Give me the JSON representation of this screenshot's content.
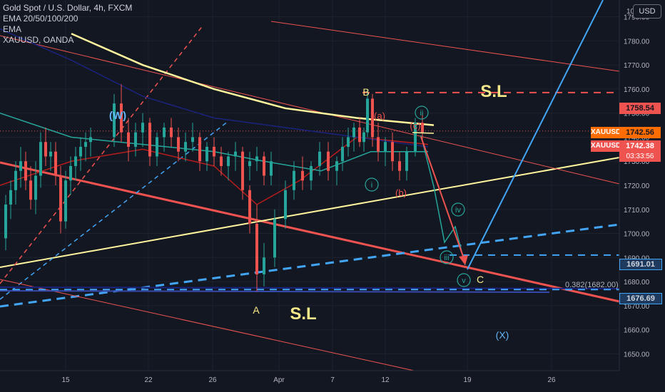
{
  "chart_title": "Gold Spot / U.S. Dollar, 4h, FXCM",
  "indicator_1": "EMA 20/50/100/200",
  "indicator_2": "EMA",
  "indicator_3": "XAUUSD, OANDA",
  "currency": "USD",
  "colors": {
    "background": "#131722",
    "bull": "#26a69a",
    "bear": "#ef5350",
    "ema20": "#b71c1c",
    "ema50": "#26a69a",
    "ema100": "#1a237e",
    "ema200": "#fff59d",
    "label_yellow": "#f7e88a",
    "wave_green": "#26a69a",
    "wave_red": "#ef5350",
    "blue_line": "#42a5f5"
  },
  "chart_data": {
    "type": "candlestick",
    "symbol": "XAUUSD",
    "timeframe": "4h",
    "ylim": [
      1643,
      1797
    ],
    "y_ticks": [
      1650,
      1660,
      1670,
      1680,
      1690,
      1700,
      1710,
      1720,
      1730,
      1740,
      1750,
      1760,
      1770,
      1780,
      1790
    ],
    "y_tick_labels": [
      "1650.00",
      "1660.00",
      "1670.00",
      "1680.00",
      "1690.00",
      "1700.00",
      "1710.00",
      "1720.00",
      "1730.00",
      "1740.00",
      "1750.00",
      "1760.00",
      "1770.00",
      "1780.00",
      "1790.00"
    ],
    "top_partial_tick_label": "10",
    "x_axis_labels": [
      "15",
      "22",
      "26",
      "Apr",
      "7",
      "12",
      "19",
      "26"
    ],
    "price_levels": [
      {
        "value": 1758.54,
        "label": "1758.54",
        "style": "dashed",
        "color": "#ef5350"
      },
      {
        "value": 1691.01,
        "label": "1691.01",
        "style": "dashed",
        "color": "#42a5f5"
      },
      {
        "value": 1676.69,
        "label": "1676.69",
        "style": "dashed",
        "color": "#42a5f5"
      }
    ],
    "current_price": {
      "symbol": "XAUUSD",
      "value": 1742.56,
      "label": "1742.56"
    },
    "secondary_price": {
      "symbol": "XAUUSD",
      "value": 1742.38,
      "label": "1742.38",
      "countdown": "03:33:56"
    },
    "fib_level": {
      "ratio": "0.382",
      "value": 1682.0,
      "label": "0.382(1682.00)"
    },
    "wave_labels": [
      "(W)",
      "B",
      "(a)",
      "ii",
      "(c)",
      "i",
      "(b)",
      "iv",
      "iii",
      "v",
      "C",
      "A",
      "(X)"
    ],
    "annotations": [
      "S.L",
      "S.L"
    ],
    "candles": [
      [
        1698,
        1716,
        1693,
        1712
      ],
      [
        1712,
        1722,
        1706,
        1718
      ],
      [
        1718,
        1730,
        1712,
        1726
      ],
      [
        1726,
        1736,
        1719,
        1730
      ],
      [
        1730,
        1734,
        1718,
        1722
      ],
      [
        1722,
        1728,
        1710,
        1714
      ],
      [
        1714,
        1730,
        1708,
        1724
      ],
      [
        1724,
        1742,
        1719,
        1738
      ],
      [
        1738,
        1744,
        1728,
        1732
      ],
      [
        1732,
        1738,
        1726,
        1734
      ],
      [
        1734,
        1738,
        1720,
        1724
      ],
      [
        1724,
        1728,
        1700,
        1705
      ],
      [
        1705,
        1726,
        1702,
        1722
      ],
      [
        1722,
        1732,
        1716,
        1728
      ],
      [
        1728,
        1736,
        1722,
        1732
      ],
      [
        1732,
        1740,
        1726,
        1736
      ],
      [
        1736,
        1742,
        1730,
        1738
      ],
      [
        1738,
        1744,
        1732,
        1740
      ],
      [
        1740,
        1758,
        1736,
        1754
      ],
      [
        1754,
        1762,
        1738,
        1742
      ],
      [
        1742,
        1748,
        1730,
        1736
      ],
      [
        1736,
        1746,
        1732,
        1742
      ],
      [
        1742,
        1750,
        1736,
        1746
      ],
      [
        1746,
        1748,
        1728,
        1732
      ],
      [
        1732,
        1742,
        1728,
        1740
      ],
      [
        1740,
        1746,
        1734,
        1744
      ],
      [
        1744,
        1748,
        1736,
        1740
      ],
      [
        1740,
        1744,
        1730,
        1734
      ],
      [
        1734,
        1742,
        1730,
        1738
      ],
      [
        1738,
        1746,
        1734,
        1740
      ],
      [
        1740,
        1742,
        1726,
        1730
      ],
      [
        1730,
        1738,
        1726,
        1736
      ],
      [
        1736,
        1740,
        1728,
        1732
      ],
      [
        1732,
        1736,
        1724,
        1728
      ],
      [
        1728,
        1734,
        1722,
        1732
      ],
      [
        1732,
        1738,
        1726,
        1734
      ],
      [
        1734,
        1736,
        1724,
        1728
      ],
      [
        1728,
        1734,
        1722,
        1730
      ],
      [
        1730,
        1736,
        1726,
        1732
      ],
      [
        1732,
        1734,
        1720,
        1724
      ],
      [
        1724,
        1734,
        1720,
        1730
      ],
      [
        1730,
        1736,
        1714,
        1718
      ],
      [
        1718,
        1720,
        1700,
        1704
      ],
      [
        1704,
        1712,
        1676,
        1683
      ],
      [
        1683,
        1696,
        1678,
        1690
      ],
      [
        1690,
        1710,
        1686,
        1706
      ],
      [
        1706,
        1722,
        1702,
        1718
      ],
      [
        1718,
        1730,
        1714,
        1726
      ],
      [
        1726,
        1732,
        1718,
        1722
      ],
      [
        1722,
        1730,
        1718,
        1728
      ],
      [
        1728,
        1738,
        1724,
        1734
      ],
      [
        1734,
        1738,
        1722,
        1726
      ],
      [
        1726,
        1732,
        1720,
        1730
      ],
      [
        1730,
        1740,
        1726,
        1736
      ],
      [
        1736,
        1744,
        1732,
        1740
      ],
      [
        1740,
        1746,
        1734,
        1744
      ],
      [
        1744,
        1748,
        1736,
        1738
      ],
      [
        1738,
        1744,
        1734,
        1742
      ],
      [
        1742,
        1760,
        1740,
        1756
      ],
      [
        1756,
        1758,
        1736,
        1740
      ],
      [
        1740,
        1746,
        1730,
        1734
      ],
      [
        1734,
        1740,
        1728,
        1738
      ],
      [
        1738,
        1742,
        1726,
        1730
      ],
      [
        1730,
        1734,
        1722,
        1726
      ],
      [
        1726,
        1736,
        1722,
        1734
      ],
      [
        1734,
        1748,
        1732,
        1746
      ],
      [
        1746,
        1750,
        1738,
        1742
      ]
    ],
    "candle_x": [
      8,
      15,
      22,
      29,
      36,
      43,
      50,
      57,
      64,
      71,
      78,
      85,
      92,
      99,
      106,
      113,
      120,
      127,
      160,
      170,
      180,
      190,
      200,
      210,
      220,
      230,
      240,
      250,
      260,
      270,
      280,
      290,
      300,
      310,
      320,
      330,
      340,
      350,
      360,
      370,
      380,
      340,
      350,
      360,
      370,
      385,
      400,
      412,
      424,
      436,
      448,
      460,
      472,
      480,
      488,
      496,
      504,
      510,
      515,
      522,
      530,
      540,
      550,
      560,
      570,
      582,
      592
    ],
    "ema": [
      {
        "name": "EMA 20",
        "color": "#b71c1c",
        "points": [
          [
            0,
            1720
          ],
          [
            100,
            1730
          ],
          [
            200,
            1735
          ],
          [
            300,
            1728
          ],
          [
            360,
            1712
          ],
          [
            420,
            1722
          ],
          [
            500,
            1740
          ],
          [
            600,
            1737
          ]
        ]
      },
      {
        "name": "EMA 50",
        "color": "#26a69a",
        "points": [
          [
            0,
            1750
          ],
          [
            100,
            1740
          ],
          [
            200,
            1737
          ],
          [
            300,
            1734
          ],
          [
            370,
            1730
          ],
          [
            450,
            1726
          ],
          [
            520,
            1734
          ],
          [
            600,
            1734
          ]
        ]
      },
      {
        "name": "EMA 100",
        "color": "#1a237e",
        "points": [
          [
            0,
            1785
          ],
          [
            100,
            1772
          ],
          [
            200,
            1757
          ],
          [
            300,
            1748
          ],
          [
            400,
            1744
          ],
          [
            500,
            1740
          ],
          [
            600,
            1736
          ]
        ]
      },
      {
        "name": "EMA 200",
        "color": "#fff59d",
        "points": [
          [
            100,
            1783
          ],
          [
            200,
            1770
          ],
          [
            300,
            1760
          ],
          [
            400,
            1752
          ],
          [
            500,
            1748
          ],
          [
            608,
            1745
          ]
        ]
      }
    ]
  }
}
